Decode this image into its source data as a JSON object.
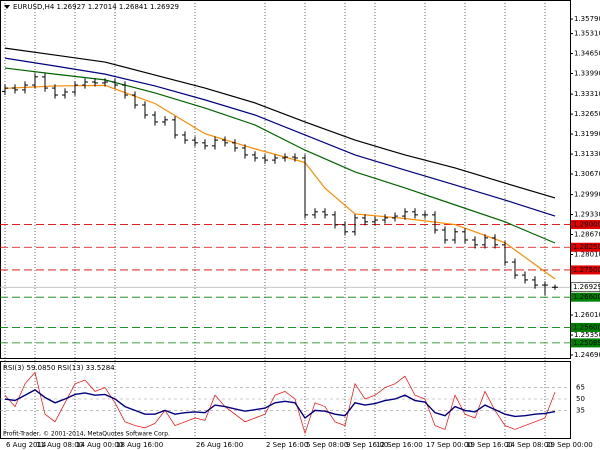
{
  "chart_data": [
    {
      "type": "candlestick",
      "title": "EURUSD,H4 1.26927 1.27014 1.26841 1.26929",
      "color": "#000000",
      "categories": [
        "6 Aug 2014",
        null,
        null,
        "11 Aug 08:00",
        null,
        null,
        null,
        "14 Aug 00:00",
        null,
        null,
        null,
        "18 Aug 16:00",
        null,
        null,
        null,
        null,
        null,
        null,
        null,
        "26 Aug 16:00",
        null,
        null,
        null,
        null,
        null,
        null,
        "2 Sep 16:00",
        null,
        null,
        null,
        "5 Sep 08:00",
        null,
        null,
        null,
        "9 Sep 16:00",
        null,
        null,
        "12 Sep 16:00",
        null,
        null,
        null,
        null,
        "17 Sep 00:00",
        null,
        null,
        null,
        "19 Sep 16:00",
        null,
        null,
        null,
        "24 Sep 08:00",
        null,
        null,
        null,
        "29 Sep 00:00",
        null
      ],
      "open": [
        1.334,
        1.3351,
        1.3345,
        1.3361,
        1.3388,
        1.3351,
        1.3328,
        1.3338,
        1.3361,
        1.3371,
        1.3368,
        1.3371,
        1.3361,
        1.3328,
        1.3295,
        1.3262,
        1.3239,
        1.3246,
        1.3196,
        1.3179,
        1.317,
        1.316,
        1.3179,
        1.317,
        1.3153,
        1.313,
        1.312,
        1.3113,
        1.312,
        1.3123,
        1.312,
        1.2932,
        1.2942,
        1.2932,
        1.2899,
        1.2876,
        1.2922,
        1.2909,
        1.2915,
        1.2922,
        1.2928,
        1.2942,
        1.2932,
        1.2932,
        1.2882,
        1.2849,
        1.2876,
        1.2849,
        1.2833,
        1.2856,
        1.2833,
        1.2776,
        1.2733,
        1.2717,
        1.27,
        1.26927
      ],
      "high": [
        1.3363,
        1.3363,
        1.3373,
        1.34,
        1.34,
        1.3363,
        1.335,
        1.3373,
        1.3383,
        1.3383,
        1.3383,
        1.3383,
        1.3373,
        1.334,
        1.3307,
        1.3274,
        1.3258,
        1.3258,
        1.3208,
        1.3191,
        1.3182,
        1.3191,
        1.3191,
        1.3182,
        1.3165,
        1.3142,
        1.3132,
        1.3132,
        1.3135,
        1.3135,
        1.3132,
        1.2954,
        1.2954,
        1.2944,
        1.2911,
        1.2934,
        1.2934,
        1.2927,
        1.2934,
        1.294,
        1.2954,
        1.2954,
        1.2944,
        1.2944,
        1.2894,
        1.2888,
        1.2888,
        1.2861,
        1.2868,
        1.2868,
        1.2845,
        1.2788,
        1.2745,
        1.2729,
        1.2712,
        1.27014
      ],
      "low": [
        1.3328,
        1.3333,
        1.3333,
        1.3349,
        1.3339,
        1.3316,
        1.3316,
        1.3326,
        1.3349,
        1.3356,
        1.3356,
        1.3349,
        1.3316,
        1.3283,
        1.325,
        1.3227,
        1.3227,
        1.3184,
        1.3167,
        1.3158,
        1.3148,
        1.3148,
        1.3158,
        1.3141,
        1.3118,
        1.3108,
        1.3101,
        1.3101,
        1.3108,
        1.3108,
        1.292,
        1.292,
        1.292,
        1.2887,
        1.2864,
        1.2864,
        1.2897,
        1.2897,
        1.2903,
        1.291,
        1.2916,
        1.292,
        1.292,
        1.287,
        1.2837,
        1.2837,
        1.2837,
        1.2821,
        1.2821,
        1.2821,
        1.2764,
        1.2721,
        1.2705,
        1.2688,
        1.2665,
        1.26841
      ],
      "close": [
        1.3351,
        1.3345,
        1.3361,
        1.3388,
        1.3351,
        1.3328,
        1.3338,
        1.3361,
        1.3371,
        1.3368,
        1.3371,
        1.3361,
        1.3328,
        1.3295,
        1.3262,
        1.3239,
        1.3246,
        1.3196,
        1.3179,
        1.317,
        1.316,
        1.3179,
        1.317,
        1.3153,
        1.313,
        1.312,
        1.3113,
        1.312,
        1.3123,
        1.312,
        1.2932,
        1.2942,
        1.2932,
        1.2899,
        1.2876,
        1.2922,
        1.2909,
        1.2915,
        1.2922,
        1.2928,
        1.2942,
        1.2932,
        1.2932,
        1.2882,
        1.2849,
        1.2876,
        1.2849,
        1.2833,
        1.2856,
        1.2833,
        1.2776,
        1.2733,
        1.2717,
        1.27,
        1.27,
        1.26929
      ],
      "ylim": [
        1.2459,
        1.3642
      ],
      "yticks": [
        {
          "value": 1.3579,
          "label": "1.35790"
        },
        {
          "value": 1.3531,
          "label": "1.35310"
        },
        {
          "value": 1.3465,
          "label": "1.34650"
        },
        {
          "value": 1.3399,
          "label": "1.33990"
        },
        {
          "value": 1.3331,
          "label": "1.33310"
        },
        {
          "value": 1.3265,
          "label": "1.32650"
        },
        {
          "value": 1.3199,
          "label": "1.31990"
        },
        {
          "value": 1.3133,
          "label": "1.31330"
        },
        {
          "value": 1.3067,
          "label": "1.30670"
        },
        {
          "value": 1.2999,
          "label": "1.29990"
        },
        {
          "value": 1.2933,
          "label": "1.29330"
        },
        {
          "value": 1.2867,
          "label": "1.28670"
        },
        {
          "value": 1.2801,
          "label": "1.28010"
        },
        {
          "value": 1.2601,
          "label": "1.26010"
        },
        {
          "value": 1.2535,
          "label": "1.25350"
        },
        {
          "value": 1.2469,
          "label": "1.24690"
        }
      ],
      "moving_averages": [
        {
          "color": "#000000",
          "x": [
            0,
            5,
            10,
            15,
            20,
            25,
            30,
            35,
            40,
            45,
            50,
            55
          ],
          "values": [
            1.3483,
            1.346,
            1.3437,
            1.3394,
            1.3351,
            1.3302,
            1.3239,
            1.3179,
            1.313,
            1.3087,
            1.3037,
            1.2988
          ]
        },
        {
          "color": "#000080",
          "x": [
            0,
            5,
            10,
            15,
            20,
            25,
            30,
            35,
            40,
            45,
            50,
            55
          ],
          "values": [
            1.345,
            1.3424,
            1.3397,
            1.3358,
            1.3312,
            1.3262,
            1.3196,
            1.313,
            1.308,
            1.3031,
            1.2981,
            1.2928
          ]
        },
        {
          "color": "#006400",
          "x": [
            0,
            5,
            10,
            15,
            20,
            25,
            30,
            35,
            40,
            45,
            50,
            55
          ],
          "values": [
            1.3417,
            1.3397,
            1.3378,
            1.3335,
            1.3285,
            1.3229,
            1.3146,
            1.3074,
            1.3021,
            1.2965,
            1.2909,
            1.2839
          ]
        },
        {
          "color": "#ff8c00",
          "x": [
            0,
            5,
            10,
            15,
            20,
            25,
            30,
            32,
            35,
            40,
            45,
            50,
            55
          ],
          "values": [
            1.335,
            1.3358,
            1.336,
            1.33,
            1.32,
            1.315,
            1.3105,
            1.302,
            1.2935,
            1.292,
            1.29,
            1.284,
            1.272
          ]
        }
      ],
      "levels": [
        {
          "value": 1.29,
          "label": "1.29000",
          "color": "#e00000"
        },
        {
          "value": 1.2825,
          "label": "1.28250",
          "color": "#e00000"
        },
        {
          "value": 1.275,
          "label": "1.27500",
          "color": "#e00000"
        },
        {
          "value": 1.266,
          "label": "1.26600",
          "color": "#008000"
        },
        {
          "value": 1.256,
          "label": "1.25600",
          "color": "#008000"
        },
        {
          "value": 1.25089,
          "label": "1.25089",
          "color": "#008000"
        }
      ],
      "current_price": 1.26929
    },
    {
      "type": "line",
      "title": "RSI(3) 59.0850 RSI(13) 33.5284",
      "footer": "Profit-Trader, © 2001-2014, MetaQuotes Software Corp.",
      "ylim": [
        0,
        100
      ],
      "yticks": [
        65,
        50,
        35
      ],
      "series": [
        {
          "color": "#ff0000",
          "values": [
            55,
            40,
            70,
            85,
            30,
            20,
            45,
            70,
            75,
            60,
            65,
            45,
            20,
            15,
            12,
            18,
            35,
            15,
            20,
            25,
            22,
            55,
            40,
            30,
            20,
            25,
            30,
            55,
            60,
            50,
            5,
            45,
            40,
            20,
            15,
            70,
            50,
            55,
            65,
            70,
            80,
            55,
            50,
            15,
            10,
            55,
            30,
            25,
            60,
            35,
            15,
            10,
            15,
            20,
            25,
            59.085
          ]
        },
        {
          "color": "#000080",
          "values": [
            50,
            48,
            55,
            62,
            52,
            45,
            50,
            56,
            58,
            55,
            56,
            50,
            40,
            35,
            30,
            30,
            35,
            30,
            32,
            33,
            32,
            42,
            40,
            37,
            34,
            36,
            38,
            45,
            47,
            45,
            25,
            35,
            34,
            30,
            28,
            45,
            42,
            44,
            48,
            50,
            55,
            48,
            46,
            32,
            28,
            40,
            35,
            33,
            42,
            36,
            30,
            27,
            28,
            30,
            31,
            33.5284
          ]
        }
      ]
    }
  ]
}
